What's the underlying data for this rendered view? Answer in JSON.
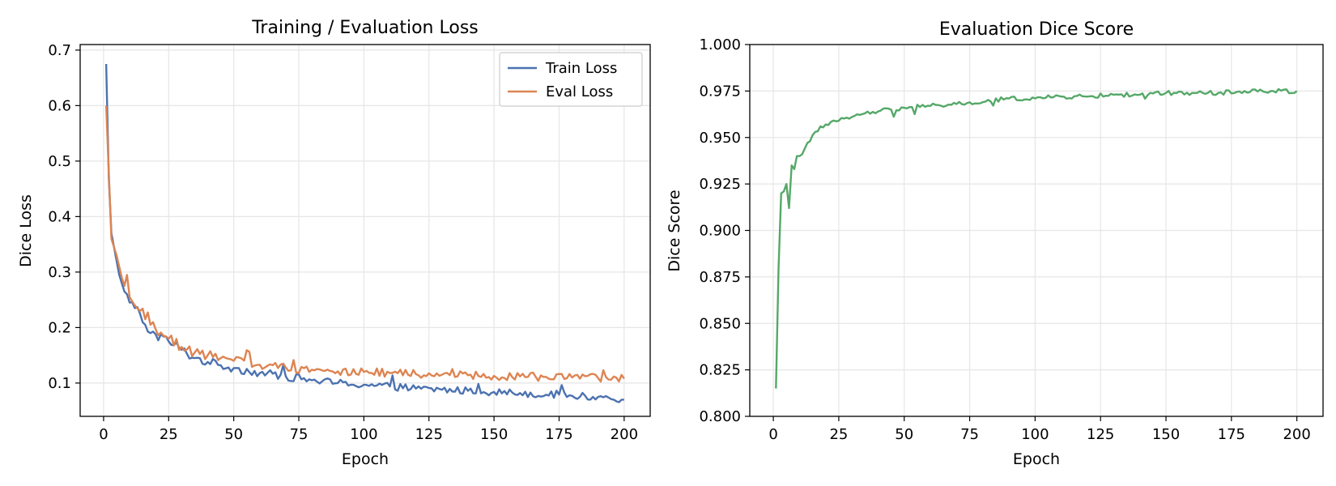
{
  "chart_data": [
    {
      "type": "line",
      "title": "Training / Evaluation Loss",
      "xlabel": "Epoch",
      "ylabel": "Dice Loss",
      "xlim": [
        -9,
        210
      ],
      "ylim": [
        0.04,
        0.71
      ],
      "xticks": [
        0,
        25,
        50,
        75,
        100,
        125,
        150,
        175,
        200
      ],
      "yticks": [
        0.1,
        0.2,
        0.3,
        0.4,
        0.5,
        0.6,
        0.7
      ],
      "grid": true,
      "legend": "top-right",
      "x_start": 1,
      "series": [
        {
          "name": "Train Loss",
          "color": "#4c72b0",
          "keypoints": [
            [
              1,
              0.675
            ],
            [
              2,
              0.47
            ],
            [
              3,
              0.37
            ],
            [
              4,
              0.345
            ],
            [
              5,
              0.32
            ],
            [
              6,
              0.295
            ],
            [
              7,
              0.28
            ],
            [
              8,
              0.265
            ],
            [
              10,
              0.245
            ],
            [
              12,
              0.235
            ],
            [
              14,
              0.225
            ],
            [
              16,
              0.205
            ],
            [
              18,
              0.19
            ],
            [
              20,
              0.188
            ],
            [
              25,
              0.175
            ],
            [
              30,
              0.16
            ],
            [
              35,
              0.145
            ],
            [
              40,
              0.138
            ],
            [
              45,
              0.132
            ],
            [
              50,
              0.127
            ],
            [
              60,
              0.118
            ],
            [
              70,
              0.112
            ],
            [
              80,
              0.105
            ],
            [
              90,
              0.1
            ],
            [
              100,
              0.097
            ],
            [
              110,
              0.094
            ],
            [
              120,
              0.09
            ],
            [
              130,
              0.088
            ],
            [
              140,
              0.086
            ],
            [
              150,
              0.084
            ],
            [
              160,
              0.082
            ],
            [
              170,
              0.079
            ],
            [
              180,
              0.077
            ],
            [
              190,
              0.075
            ],
            [
              200,
              0.07
            ]
          ]
        },
        {
          "name": "Eval Loss",
          "color": "#dd8452",
          "keypoints": [
            [
              1,
              0.6
            ],
            [
              2,
              0.48
            ],
            [
              3,
              0.36
            ],
            [
              4,
              0.345
            ],
            [
              5,
              0.33
            ],
            [
              6,
              0.31
            ],
            [
              7,
              0.29
            ],
            [
              8,
              0.275
            ],
            [
              10,
              0.255
            ],
            [
              12,
              0.24
            ],
            [
              14,
              0.23
            ],
            [
              16,
              0.215
            ],
            [
              18,
              0.205
            ],
            [
              20,
              0.197
            ],
            [
              25,
              0.18
            ],
            [
              30,
              0.165
            ],
            [
              35,
              0.155
            ],
            [
              40,
              0.15
            ],
            [
              45,
              0.145
            ],
            [
              50,
              0.14
            ],
            [
              60,
              0.133
            ],
            [
              70,
              0.128
            ],
            [
              80,
              0.124
            ],
            [
              90,
              0.121
            ],
            [
              100,
              0.12
            ],
            [
              110,
              0.118
            ],
            [
              120,
              0.116
            ],
            [
              130,
              0.115
            ],
            [
              140,
              0.114
            ],
            [
              150,
              0.113
            ],
            [
              160,
              0.112
            ],
            [
              170,
              0.111
            ],
            [
              180,
              0.11
            ],
            [
              190,
              0.109
            ],
            [
              200,
              0.108
            ]
          ]
        }
      ]
    },
    {
      "type": "line",
      "title": "Evaluation Dice Score",
      "xlabel": "Epoch",
      "ylabel": "Dice Score",
      "xlim": [
        -9,
        210
      ],
      "ylim": [
        0.8,
        1.0
      ],
      "xticks": [
        0,
        25,
        50,
        75,
        100,
        125,
        150,
        175,
        200
      ],
      "yticks": [
        0.8,
        0.825,
        0.85,
        0.875,
        0.9,
        0.925,
        0.95,
        0.975,
        1.0
      ],
      "ytick_labels": [
        "0.800",
        "0.825",
        "0.850",
        "0.875",
        "0.900",
        "0.925",
        "0.950",
        "0.975",
        "1.000"
      ],
      "grid": true,
      "x_start": 1,
      "series": [
        {
          "color": "#55a868",
          "keypoints": [
            [
              1,
              0.815
            ],
            [
              2,
              0.88
            ],
            [
              3,
              0.92
            ],
            [
              4,
              0.921
            ],
            [
              5,
              0.925
            ],
            [
              6,
              0.912
            ],
            [
              7,
              0.935
            ],
            [
              8,
              0.933
            ],
            [
              9,
              0.94
            ],
            [
              10,
              0.94
            ],
            [
              12,
              0.944
            ],
            [
              14,
              0.948
            ],
            [
              16,
              0.953
            ],
            [
              18,
              0.956
            ],
            [
              20,
              0.957
            ],
            [
              25,
              0.959
            ],
            [
              30,
              0.961
            ],
            [
              35,
              0.963
            ],
            [
              40,
              0.964
            ],
            [
              45,
              0.965
            ],
            [
              50,
              0.966
            ],
            [
              60,
              0.967
            ],
            [
              70,
              0.968
            ],
            [
              80,
              0.969
            ],
            [
              90,
              0.971
            ],
            [
              100,
              0.971
            ],
            [
              110,
              0.972
            ],
            [
              120,
              0.972
            ],
            [
              130,
              0.973
            ],
            [
              140,
              0.973
            ],
            [
              150,
              0.974
            ],
            [
              160,
              0.974
            ],
            [
              170,
              0.974
            ],
            [
              180,
              0.975
            ],
            [
              190,
              0.975
            ],
            [
              200,
              0.975
            ]
          ]
        }
      ]
    }
  ]
}
